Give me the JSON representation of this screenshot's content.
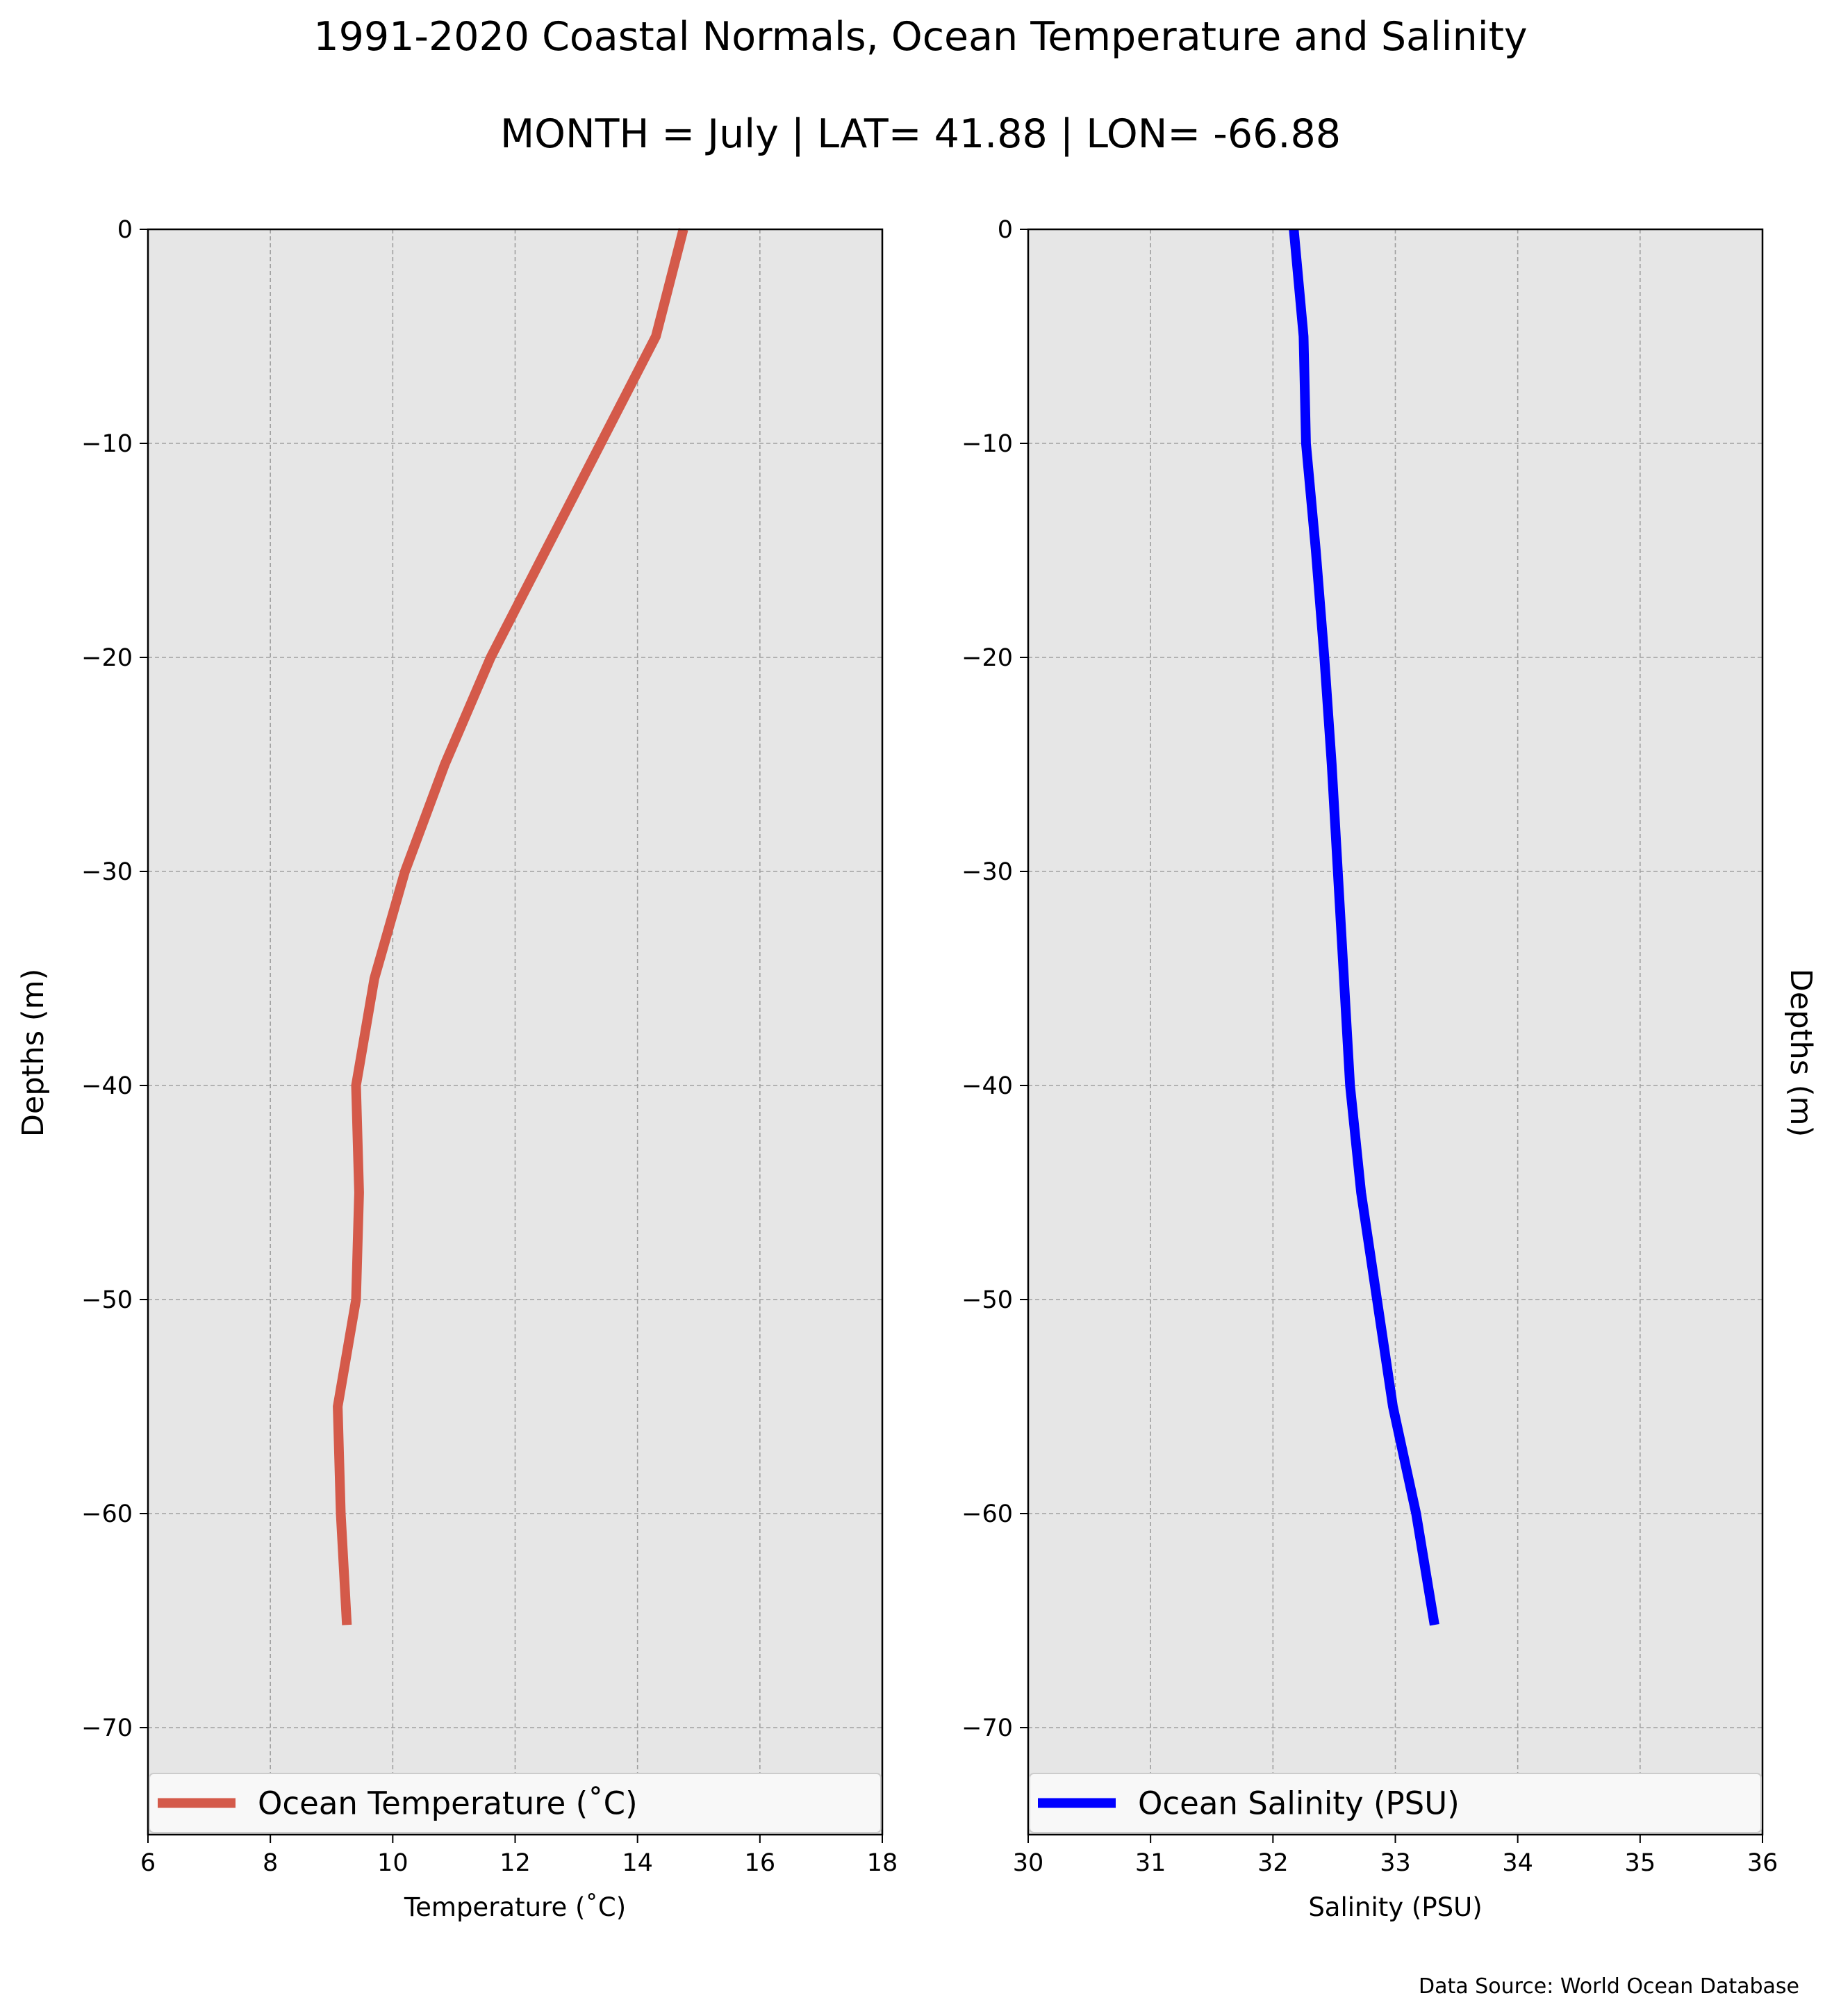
{
  "figure": {
    "title": "1991-2020 Coastal Normals, Ocean Temperature and Salinity",
    "subtitle": "MONTH = July | LAT= 41.88 | LON= -66.88",
    "source_note": "Data Source: World Ocean Database"
  },
  "chart_data": [
    {
      "type": "line",
      "xlabel": "Temperature (˚C)",
      "ylabel": "Depths (m)",
      "xlim": [
        6,
        18
      ],
      "ylim": [
        -75,
        0
      ],
      "xticks": [
        6,
        8,
        10,
        12,
        14,
        16,
        18
      ],
      "yticks": [
        0,
        -10,
        -20,
        -30,
        -40,
        -50,
        -60,
        -70
      ],
      "grid": true,
      "background": "#e6e6e6",
      "legend_position": "bottom",
      "series": [
        {
          "name": "Ocean Temperature (˚C)",
          "color": "#d45a4a",
          "x": [
            14.75,
            14.3,
            13.4,
            12.5,
            11.6,
            10.85,
            10.2,
            9.7,
            9.4,
            9.45,
            9.4,
            9.1,
            9.15,
            9.25
          ],
          "y": [
            0,
            -5,
            -10,
            -15,
            -20,
            -25,
            -30,
            -35,
            -40,
            -45,
            -50,
            -55,
            -60,
            -65.2
          ]
        }
      ]
    },
    {
      "type": "line",
      "xlabel": "Salinity (PSU)",
      "ylabel": "Depths (m)",
      "xlim": [
        30,
        36
      ],
      "ylim": [
        -75,
        0
      ],
      "xticks": [
        30,
        31,
        32,
        33,
        34,
        35,
        36
      ],
      "yticks": [
        0,
        -10,
        -20,
        -30,
        -40,
        -50,
        -60,
        -70
      ],
      "grid": true,
      "background": "#e6e6e6",
      "legend_position": "bottom",
      "series": [
        {
          "name": "Ocean Salinity (PSU)",
          "color": "#0000ff",
          "x": [
            32.17,
            32.25,
            32.27,
            32.35,
            32.42,
            32.48,
            32.53,
            32.58,
            32.63,
            32.72,
            32.85,
            32.98,
            33.17,
            33.32
          ],
          "y": [
            0,
            -5,
            -10,
            -15,
            -20,
            -25,
            -30,
            -35,
            -40,
            -45,
            -50,
            -55,
            -60,
            -65.2
          ]
        }
      ]
    }
  ]
}
